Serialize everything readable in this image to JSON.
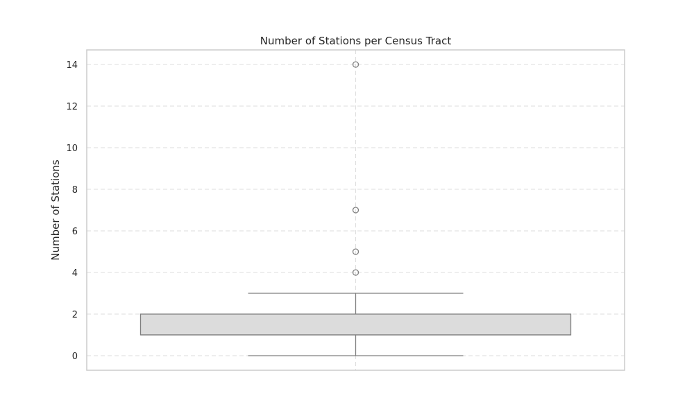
{
  "chart_data": {
    "type": "box",
    "title": "Number of Stations per Census Tract",
    "xlabel": "",
    "ylabel": "Number of Stations",
    "ylim": [
      -0.7,
      14.7
    ],
    "yticks": [
      0,
      2,
      4,
      6,
      8,
      10,
      12,
      14
    ],
    "grid": true,
    "box": {
      "whisker_low": 0,
      "q1": 1,
      "median": 1,
      "q3": 2,
      "whisker_high": 3,
      "outliers": [
        4,
        5,
        7,
        14
      ]
    },
    "colors": {
      "box_fill": "#dcdcdc",
      "box_edge": "#7f7f7f",
      "grid": "#dddddd",
      "frame": "#cccccc"
    }
  }
}
